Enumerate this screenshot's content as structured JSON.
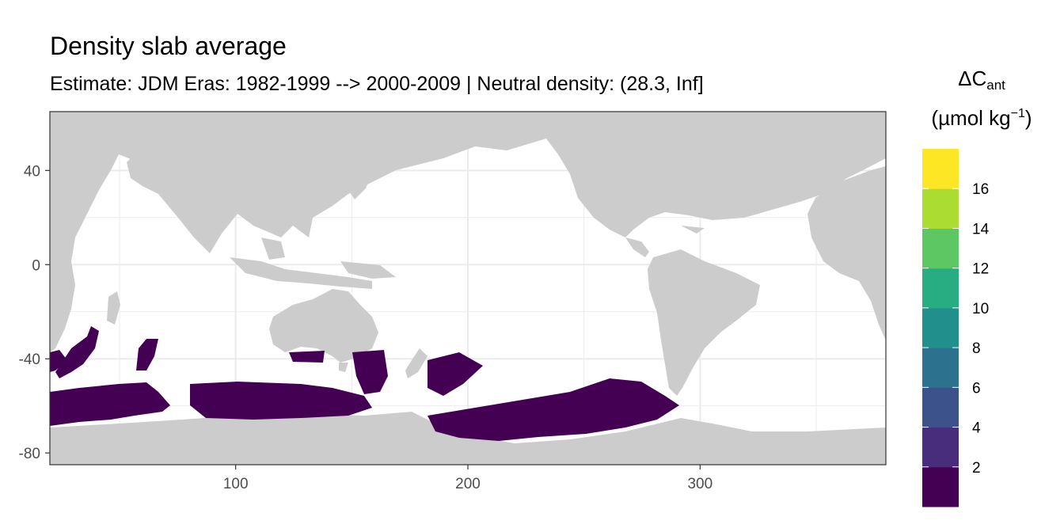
{
  "chart_data": {
    "type": "heatmap",
    "title": "Density slab average",
    "subtitle": "Estimate: JDM Eras: 1982-1999 --> 2000-2009 | Neutral density: (28.3, Inf]",
    "xlabel": "",
    "ylabel": "",
    "xlim": [
      20,
      380
    ],
    "ylim": [
      -85,
      65
    ],
    "x_ticks": [
      "100",
      "200",
      "300"
    ],
    "x_tick_values": [
      100,
      200,
      300
    ],
    "y_ticks": [
      "40",
      "0",
      "-40",
      "-80"
    ],
    "y_tick_values": [
      40,
      0,
      -40,
      -80
    ],
    "grid": true,
    "legend": {
      "placement": "right",
      "title_main": "ΔC",
      "title_sub": "ant",
      "title_unit_prefix": "(µmol kg",
      "title_unit_sup": "−1",
      "title_unit_suffix": ")",
      "breaks": [
        "2",
        "4",
        "6",
        "8",
        "10",
        "12",
        "14",
        "16"
      ],
      "break_values": [
        2,
        4,
        6,
        8,
        10,
        12,
        14,
        16
      ],
      "bins": [
        0,
        2,
        4,
        6,
        8,
        10,
        12,
        14,
        16,
        18
      ],
      "colors": [
        "#440154",
        "#472D7B",
        "#3B528B",
        "#2C728E",
        "#21908C",
        "#27AD81",
        "#5DC863",
        "#AADC32",
        "#FDE725"
      ]
    },
    "land_color": "#CCCCCC",
    "ocean_color": "#FFFFFF",
    "regions_value_bin": "0-2",
    "regions": [
      {
        "name": "",
        "lon": [
          20,
          75
        ],
        "lat": [
          -70,
          -57
        ],
        "value_bin": "0-2"
      },
      {
        "name": "",
        "lon": [
          20,
          40
        ],
        "lat": [
          -45,
          -35
        ],
        "value_bin": "0-2"
      },
      {
        "name": "",
        "lon": [
          40,
          60
        ],
        "lat": [
          -48,
          -25
        ],
        "value_bin": "0-2"
      },
      {
        "name": "",
        "lon": [
          60,
          75
        ],
        "lat": [
          -45,
          -30
        ],
        "value_bin": "0-2"
      },
      {
        "name": "",
        "lon": [
          80,
          165
        ],
        "lat": [
          -70,
          -58
        ],
        "value_bin": "0-2"
      },
      {
        "name": "",
        "lon": [
          130,
          150
        ],
        "lat": [
          -43,
          -37
        ],
        "value_bin": "0-2"
      },
      {
        "name": "",
        "lon": [
          150,
          185
        ],
        "lat": [
          -55,
          -37
        ],
        "value_bin": "0-2"
      },
      {
        "name": "",
        "lon": [
          180,
          300
        ],
        "lat": [
          -75,
          -60
        ],
        "value_bin": "0-2"
      },
      {
        "name": "",
        "lon": [
          195,
          220
        ],
        "lat": [
          -55,
          -40
        ],
        "value_bin": "0-2"
      },
      {
        "name": "",
        "lon": [
          220,
          270
        ],
        "lat": [
          -60,
          -45
        ],
        "value_bin": "0-2"
      },
      {
        "name": "",
        "lon": [
          270,
          290
        ],
        "lat": [
          -60,
          -50
        ],
        "value_bin": "0-2"
      }
    ]
  }
}
